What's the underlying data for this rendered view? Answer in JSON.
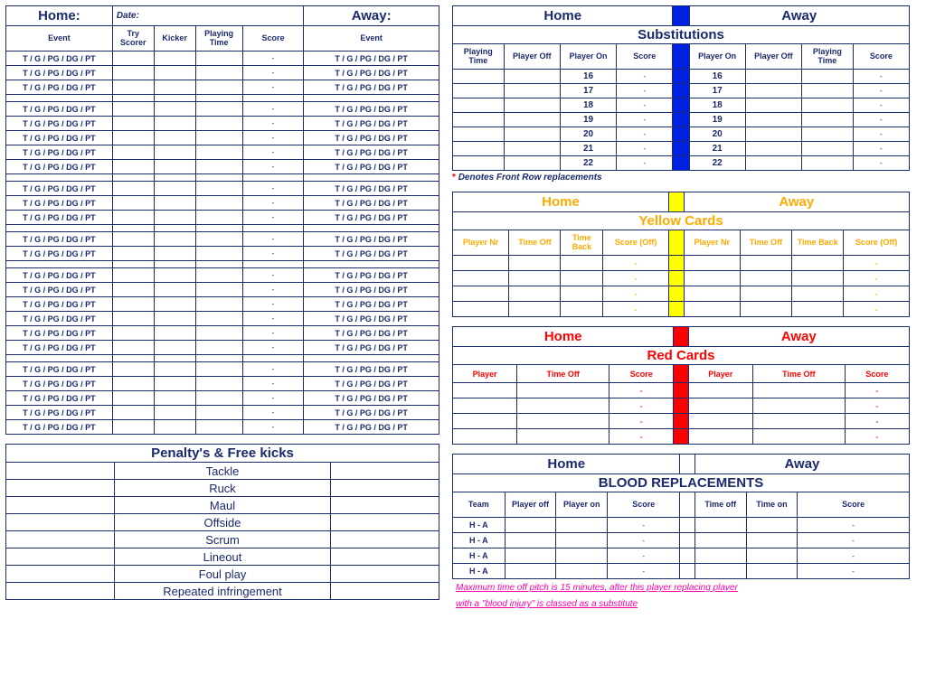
{
  "labels": {
    "home": "Home",
    "away": "Away",
    "home_colon": "Home:",
    "away_colon": "Away:",
    "date": "Date:",
    "event": "Event",
    "try_scorer": "Try Scorer",
    "kicker": "Kicker",
    "playing_time": "Playing Time",
    "score": "Score",
    "event_code": "T / G / PG / DG / PT",
    "dash": "-",
    "substitutions": "Substitutions",
    "player_off": "Player Off",
    "player_on": "Player On",
    "player_off_lc": "Player off",
    "player_on_lc": "Player on",
    "front_row_note": "Denotes Front Row replacements",
    "yellow_cards": "Yellow Cards",
    "player_nr": "Player Nr",
    "time_off": "Time Off",
    "time_back": "Time Back",
    "score_off": "Score (Off)",
    "red_cards": "Red Cards",
    "player": "Player",
    "blood": "BLOOD REPLACEMENTS",
    "team": "Team",
    "time_off_lc": "Time off",
    "time_on_lc": "Time on",
    "ha": "H   -   A",
    "penalties_title": "Penalty's & Free kicks"
  },
  "penalties": [
    "Tackle",
    "Ruck",
    "Maul",
    "Offside",
    "Scrum",
    "Lineout",
    "Foul play",
    "Repeated infringement"
  ],
  "sub_numbers": [
    16,
    17,
    18,
    19,
    20,
    21,
    22
  ],
  "left_groups": [
    3,
    5,
    3,
    2,
    6,
    5
  ],
  "yellow_rows": 4,
  "red_rows": 4,
  "blood_rows": 4,
  "notes": {
    "blood1": "Maximum time off pitch is 15 minutes, after this player replacing player",
    "blood2": "with a \"blood injury\" is classed as a substitute"
  },
  "colors": {
    "navy": "#1a2a6c",
    "blue_band": "#0020e0",
    "yellow_band": "#ffff00",
    "red_band": "#ff0000",
    "orange": "#ffaa00",
    "pink": "#ff00b0"
  }
}
